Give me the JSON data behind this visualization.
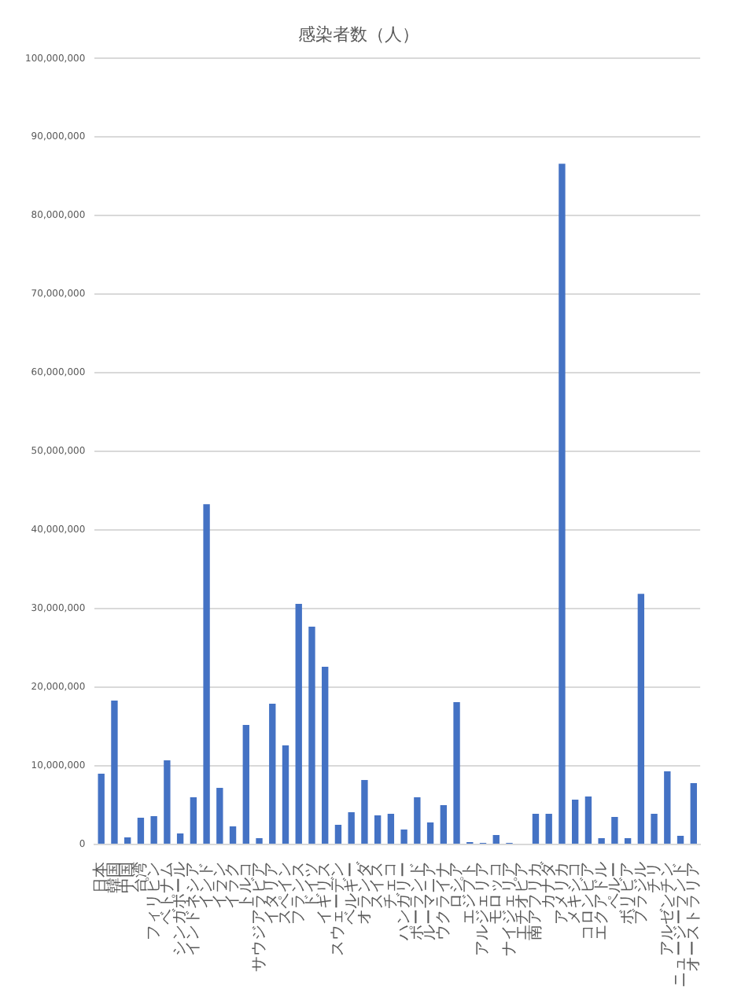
{
  "chart_data": {
    "type": "bar",
    "title": "感染者数（人）",
    "categories": [
      "日本",
      "韓国",
      "中国",
      "台湾",
      "フィリピン",
      "ベトナム",
      "シンガポール",
      "インドネシア",
      "インド",
      "イラン",
      "イラク",
      "トルコ",
      "サウジアラビア",
      "イタリア",
      "スペイン",
      "フランス",
      "ドイツ",
      "イギリス",
      "スウェーデン",
      "ベルギー",
      "オランダ",
      "スイス",
      "チェコ",
      "ハンガリー",
      "ポーランド",
      "ルーマニア",
      "ウクライナ",
      "ロシア",
      "エジプト",
      "アルジェリア",
      "モロッコ",
      "ナイジェリア",
      "エチオピア",
      "南アフリカ",
      "カナダ",
      "アメリカ",
      "メキシコ",
      "コロンビア",
      "エクアドル",
      "ペルー",
      "ボリビア",
      "ブラジル",
      "チリ",
      "アルゼンチン",
      "ニュージーランド",
      "オーストラリア"
    ],
    "values": [
      9000000,
      18300000,
      900000,
      3400000,
      3600000,
      10700000,
      1400000,
      6000000,
      43300000,
      7200000,
      2300000,
      15200000,
      800000,
      17900000,
      12600000,
      30600000,
      27700000,
      22600000,
      2500000,
      4100000,
      8200000,
      3700000,
      3900000,
      1900000,
      6000000,
      2800000,
      5000000,
      18100000,
      300000,
      200000,
      1200000,
      200000,
      0,
      3900000,
      3900000,
      86600000,
      5700000,
      6100000,
      800000,
      3500000,
      800000,
      31900000,
      3900000,
      9300000,
      1100000,
      7800000
    ],
    "color": "#4472c4",
    "ylim": [
      0,
      100000000
    ],
    "yticks": [
      {
        "value": 0,
        "label": "0"
      },
      {
        "value": 10000000,
        "label": "10,000,000"
      },
      {
        "value": 20000000,
        "label": "20,000,000"
      },
      {
        "value": 30000000,
        "label": "30,000,000"
      },
      {
        "value": 40000000,
        "label": "40,000,000"
      },
      {
        "value": 50000000,
        "label": "50,000,000"
      },
      {
        "value": 60000000,
        "label": "60,000,000"
      },
      {
        "value": 70000000,
        "label": "70,000,000"
      },
      {
        "value": 80000000,
        "label": "80,000,000"
      },
      {
        "value": 90000000,
        "label": "90,000,000"
      },
      {
        "value": 100000000,
        "label": "100,000,000"
      }
    ],
    "grid": "y"
  }
}
